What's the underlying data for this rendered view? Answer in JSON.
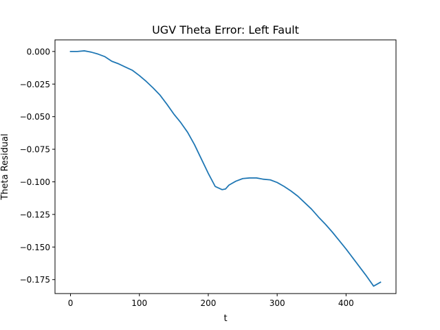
{
  "chart_data": {
    "type": "line",
    "title": "UGV Theta Error: Left Fault",
    "xlabel": "t",
    "ylabel": "Theta Residual",
    "xlim": [
      -22.5,
      472.5
    ],
    "ylim": [
      -0.1857,
      0.0089
    ],
    "xticks": [
      0,
      100,
      200,
      300,
      400
    ],
    "xtick_labels": [
      "0",
      "100",
      "200",
      "300",
      "400"
    ],
    "yticks": [
      0.0,
      -0.025,
      -0.05,
      -0.075,
      -0.1,
      -0.125,
      -0.15,
      -0.175
    ],
    "ytick_labels": [
      "0.000",
      "−0.025",
      "−0.050",
      "−0.075",
      "−0.100",
      "−0.125",
      "−0.150",
      "−0.175"
    ],
    "grid": false,
    "legend": false,
    "line_color": "#1f77b4",
    "series": [
      {
        "x": [
          0,
          10,
          20,
          30,
          40,
          50,
          60,
          70,
          80,
          90,
          100,
          110,
          120,
          130,
          140,
          150,
          160,
          170,
          180,
          190,
          200,
          210,
          220,
          225,
          230,
          240,
          250,
          260,
          270,
          280,
          290,
          300,
          310,
          320,
          330,
          340,
          350,
          360,
          370,
          380,
          390,
          400,
          410,
          420,
          430,
          440,
          450
        ],
        "y": [
          0.0,
          0.0,
          0.0005,
          -0.0005,
          -0.002,
          -0.004,
          -0.0075,
          -0.0095,
          -0.012,
          -0.0145,
          -0.0185,
          -0.023,
          -0.028,
          -0.0335,
          -0.0405,
          -0.048,
          -0.0545,
          -0.062,
          -0.0715,
          -0.0825,
          -0.0935,
          -0.1035,
          -0.106,
          -0.1055,
          -0.1025,
          -0.0995,
          -0.0975,
          -0.097,
          -0.097,
          -0.098,
          -0.0985,
          -0.1005,
          -0.1035,
          -0.107,
          -0.111,
          -0.116,
          -0.121,
          -0.127,
          -0.1325,
          -0.1385,
          -0.145,
          -0.1515,
          -0.1585,
          -0.1655,
          -0.1725,
          -0.18,
          -0.177
        ]
      }
    ]
  }
}
